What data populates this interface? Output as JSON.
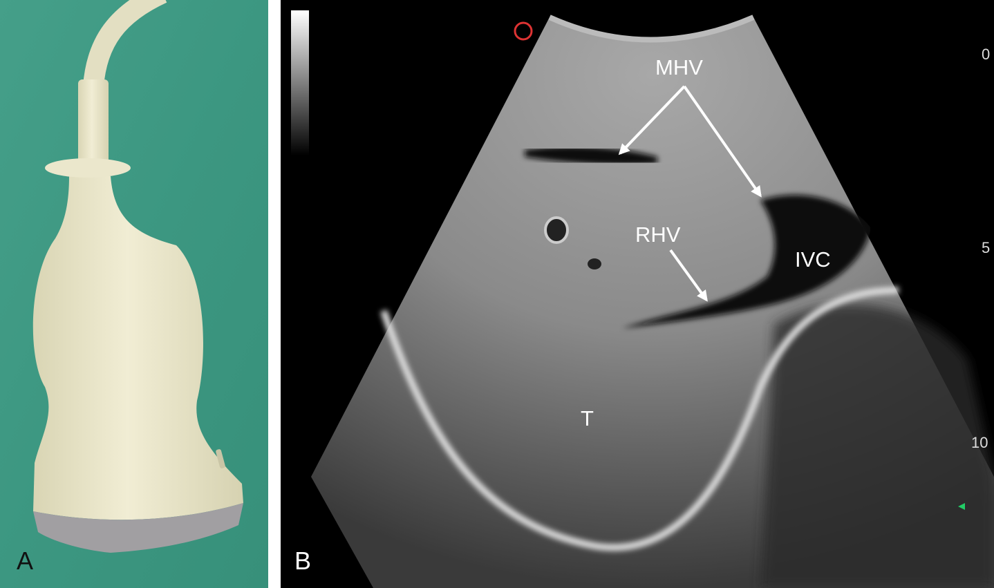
{
  "panels": [
    {
      "label": "A"
    },
    {
      "label": "B",
      "annotations": [
        "MHV",
        "RHV",
        "IVC",
        "T"
      ],
      "depth_scale": [
        "0",
        "5",
        "10"
      ]
    }
  ]
}
